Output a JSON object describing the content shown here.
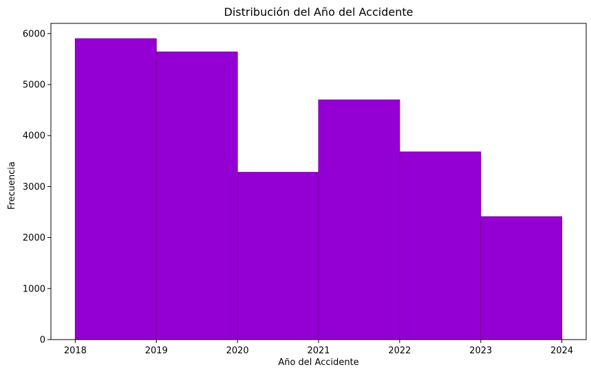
{
  "chart_data": {
    "type": "bar",
    "title": "Distribución del Año del Accidente",
    "xlabel": "Año del Accidente",
    "ylabel": "Frecuencia",
    "bin_edges": [
      2018,
      2019,
      2020,
      2021,
      2022,
      2023,
      2024
    ],
    "values": [
      5900,
      5640,
      3280,
      4700,
      3680,
      2410
    ],
    "xlim": [
      2017.7,
      2024.3
    ],
    "ylim": [
      0,
      6200
    ],
    "xticks": [
      "2018",
      "2019",
      "2020",
      "2021",
      "2022",
      "2023",
      "2024"
    ],
    "yticks": [
      "0",
      "1000",
      "2000",
      "3000",
      "4000",
      "5000",
      "6000"
    ],
    "grid": false,
    "colors": {
      "bar_fill": "#9400d3",
      "bar_edge": "#7a0099"
    }
  }
}
